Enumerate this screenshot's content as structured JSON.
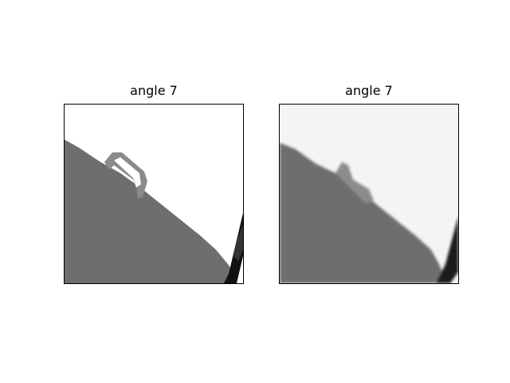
{
  "panels": [
    {
      "title": "angle 7",
      "variant": "original",
      "background": "#ffffff",
      "fill": "#6e6e6e"
    },
    {
      "title": "angle 7",
      "variant": "reconstruction",
      "background": "#f4f4f4",
      "fill": "#6e6e6e"
    }
  ]
}
